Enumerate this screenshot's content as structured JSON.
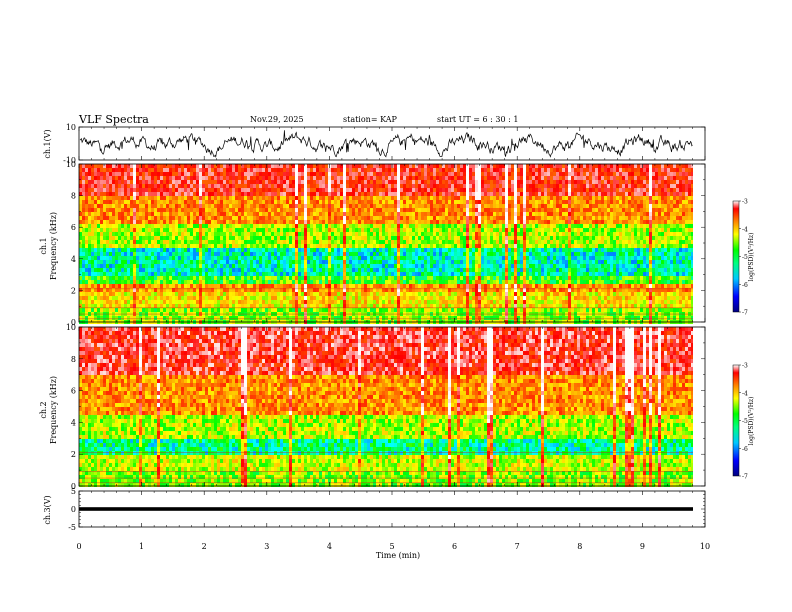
{
  "header": {
    "title": "VLF Spectra",
    "date": "Nov.29, 2025",
    "station": "station= KAP",
    "start": "start  UT =   6  : 30 : 1"
  },
  "chart_data": [
    {
      "type": "line",
      "panel": "ch1-waveform",
      "ylabel": "ch.1(V)",
      "ylim": [
        -10,
        10
      ],
      "ytick_labels": [
        "10",
        "-10"
      ],
      "xlim": [
        0,
        10
      ],
      "note_values": "signal oscillates roughly between -8 and +8 V",
      "series": [
        {
          "values_range": [
            -8,
            8
          ]
        }
      ]
    },
    {
      "type": "heatmap",
      "panel": "ch1-spectrogram",
      "ylabel": "ch.1\nFrequency  (kHz)",
      "ylabel_line1": "ch.1",
      "ylabel_line2": "Frequency  (kHz)",
      "ylim": [
        0,
        10
      ],
      "ytick_labels": [
        "0",
        "2",
        "4",
        "6",
        "8",
        "10"
      ],
      "xlim": [
        0,
        9.8
      ],
      "colorbar": {
        "label": "log(PSD)(V²/Hz)",
        "range": [
          -7,
          -3
        ],
        "tick_labels": [
          "-3",
          "-4",
          "-5",
          "-6",
          "-7"
        ]
      },
      "bands_log_psd": [
        {
          "freq_khz": [
            0,
            1
          ],
          "level": -5.0
        },
        {
          "freq_khz": [
            1,
            2
          ],
          "level": -4.6
        },
        {
          "freq_khz": [
            2,
            2.3
          ],
          "level": -4.2
        },
        {
          "freq_khz": [
            2.3,
            3
          ],
          "level": -5.2
        },
        {
          "freq_khz": [
            3,
            4.8
          ],
          "level": -5.7
        },
        {
          "freq_khz": [
            4.8,
            6.3
          ],
          "level": -4.9
        },
        {
          "freq_khz": [
            6.3,
            8
          ],
          "level": -4.2
        },
        {
          "freq_khz": [
            8,
            10
          ],
          "level": -3.6
        }
      ]
    },
    {
      "type": "heatmap",
      "panel": "ch2-spectrogram",
      "ylabel_line1": "ch.2",
      "ylabel_line2": "Frequency  (kHz)",
      "ylim": [
        0,
        10
      ],
      "ytick_labels": [
        "0",
        "2",
        "4",
        "6",
        "8",
        "10"
      ],
      "xlim": [
        0,
        9.8
      ],
      "colorbar": {
        "label": "log(PSD)(V²/Hz)",
        "range": [
          -7,
          -3
        ],
        "tick_labels": [
          "-3",
          "-4",
          "-5",
          "-6",
          "-7"
        ]
      },
      "bands_log_psd": [
        {
          "freq_khz": [
            0,
            1
          ],
          "level": -5.0
        },
        {
          "freq_khz": [
            1,
            2
          ],
          "level": -4.8
        },
        {
          "freq_khz": [
            2,
            3
          ],
          "level": -5.6
        },
        {
          "freq_khz": [
            3,
            4.5
          ],
          "level": -4.9
        },
        {
          "freq_khz": [
            4.5,
            7
          ],
          "level": -4.2
        },
        {
          "freq_khz": [
            7,
            10
          ],
          "level": -3.5
        }
      ]
    },
    {
      "type": "line",
      "panel": "ch3-waveform",
      "ylabel": "ch.3(V)",
      "ylim": [
        -5,
        5
      ],
      "ytick_labels": [
        "5",
        "0",
        "-5"
      ],
      "xlim": [
        0,
        10
      ],
      "series": [
        {
          "values_range": [
            -0.3,
            0.3
          ],
          "mean": 0
        }
      ]
    }
  ],
  "xaxis": {
    "label": "Time  (min)",
    "range": [
      0,
      10
    ],
    "tick_labels": [
      "0",
      "1",
      "2",
      "3",
      "4",
      "5",
      "6",
      "7",
      "8",
      "9",
      "10"
    ]
  },
  "colors": {
    "colormap": [
      "#000080",
      "#0000ff",
      "#00ffff",
      "#00ff00",
      "#ffff00",
      "#ff8000",
      "#ff0000",
      "#ffffff"
    ]
  }
}
